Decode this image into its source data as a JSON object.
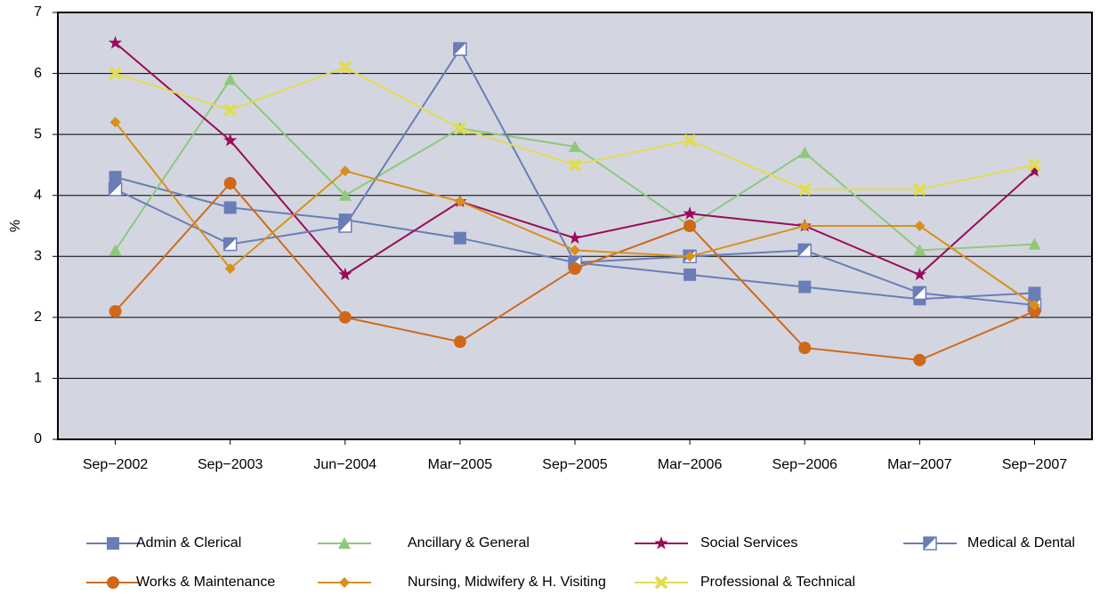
{
  "chart_data": {
    "type": "line",
    "categories": [
      "Sep−2002",
      "Sep−2003",
      "Jun−2004",
      "Mar−2005",
      "Sep−2005",
      "Mar−2006",
      "Sep−2006",
      "Mar−2007",
      "Sep−2007"
    ],
    "y_label": "%",
    "ylim": [
      0,
      7
    ],
    "yticks": [
      0,
      1,
      2,
      3,
      4,
      5,
      6,
      7
    ],
    "grid": true,
    "legend": "bottom",
    "series": [
      {
        "name": "Admin & Clerical",
        "color": "#6a7db7",
        "marker": "square",
        "values": [
          4.3,
          3.8,
          3.6,
          3.3,
          2.9,
          2.7,
          2.5,
          2.3,
          2.4
        ]
      },
      {
        "name": "Ancillary & General",
        "color": "#8fc87a",
        "marker": "triangle",
        "values": [
          3.1,
          5.9,
          4.0,
          5.1,
          4.8,
          3.5,
          4.7,
          3.1,
          3.2
        ]
      },
      {
        "name": "Social Services",
        "color": "#9a0b5b",
        "marker": "star",
        "values": [
          6.5,
          4.9,
          2.7,
          3.9,
          3.3,
          3.7,
          3.5,
          2.7,
          4.4
        ]
      },
      {
        "name": "Medical & Dental",
        "color": "#6a7db7",
        "marker": "halfsquare",
        "values": [
          4.1,
          3.2,
          3.5,
          6.4,
          2.9,
          3.0,
          3.1,
          2.4,
          2.2
        ]
      },
      {
        "name": "Works & Maintenance",
        "color": "#cf6919",
        "marker": "circle",
        "values": [
          2.1,
          4.2,
          2.0,
          1.6,
          2.8,
          3.5,
          1.5,
          1.3,
          2.1
        ]
      },
      {
        "name": "Nursing, Midwifery & H. Visiting",
        "color": "#d8901a",
        "marker": "diamond",
        "values": [
          5.2,
          2.8,
          4.4,
          3.9,
          3.1,
          3.0,
          3.5,
          3.5,
          2.2
        ]
      },
      {
        "name": "Professional & Technical",
        "color": "#e2dc52",
        "marker": "x",
        "values": [
          6.0,
          5.4,
          6.1,
          5.1,
          4.5,
          4.9,
          4.1,
          4.1,
          4.5
        ]
      }
    ]
  }
}
